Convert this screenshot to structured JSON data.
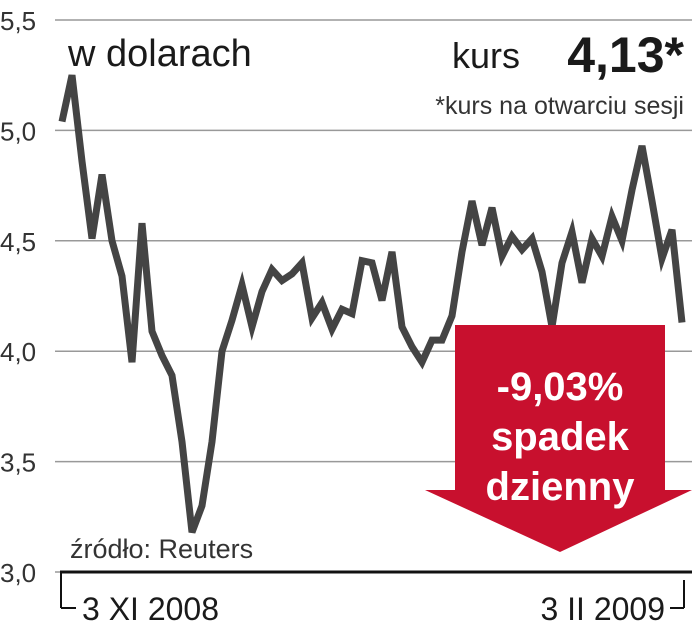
{
  "chart_data": {
    "type": "line",
    "title": "w dolarach",
    "annotations": {
      "rate_label": "kurs",
      "rate_value": "4,13*",
      "rate_note": "*kurs na otwarciu sesji",
      "source": "źródło: Reuters",
      "change": "-9,03%",
      "change_line1": "spadek",
      "change_line2": "dzienny"
    },
    "categories": [
      "3 XI 2008",
      null,
      null,
      null,
      null,
      null,
      null,
      null,
      null,
      null,
      null,
      null,
      null,
      null,
      null,
      null,
      null,
      null,
      null,
      null,
      null,
      null,
      null,
      null,
      null,
      null,
      null,
      null,
      null,
      null,
      null,
      null,
      null,
      null,
      null,
      null,
      null,
      null,
      null,
      null,
      null,
      null,
      null,
      null,
      null,
      null,
      null,
      null,
      null,
      null,
      null,
      null,
      null,
      null,
      null,
      null,
      null,
      null,
      null,
      null,
      null,
      null,
      "3 II 2009"
    ],
    "series": [
      {
        "name": "kurs",
        "color": "#444444",
        "values": [
          5.04,
          5.25,
          4.86,
          4.51,
          4.8,
          4.5,
          4.34,
          3.95,
          4.58,
          4.09,
          3.98,
          3.89,
          3.59,
          3.18,
          3.3,
          3.59,
          4.0,
          4.14,
          4.3,
          4.11,
          4.27,
          4.37,
          4.32,
          4.35,
          4.4,
          4.15,
          4.22,
          4.1,
          4.19,
          4.17,
          4.41,
          4.4,
          4.23,
          4.45,
          4.11,
          4.02,
          3.95,
          4.05,
          4.05,
          4.16,
          4.45,
          4.68,
          4.48,
          4.65,
          4.43,
          4.52,
          4.46,
          4.51,
          4.36,
          4.11,
          4.4,
          4.54,
          4.31,
          4.51,
          4.43,
          4.61,
          4.5,
          4.73,
          4.93,
          4.68,
          4.42,
          4.55,
          4.13
        ]
      }
    ],
    "ylim": [
      3.0,
      5.5
    ],
    "yticks": [
      {
        "value": 3.0,
        "label": "3,0"
      },
      {
        "value": 3.5,
        "label": "3,5"
      },
      {
        "value": 4.0,
        "label": "4,0"
      },
      {
        "value": 4.5,
        "label": "4,5"
      },
      {
        "value": 5.0,
        "label": "5,0"
      },
      {
        "value": 5.5,
        "label": "5,5"
      }
    ],
    "grid": true
  }
}
